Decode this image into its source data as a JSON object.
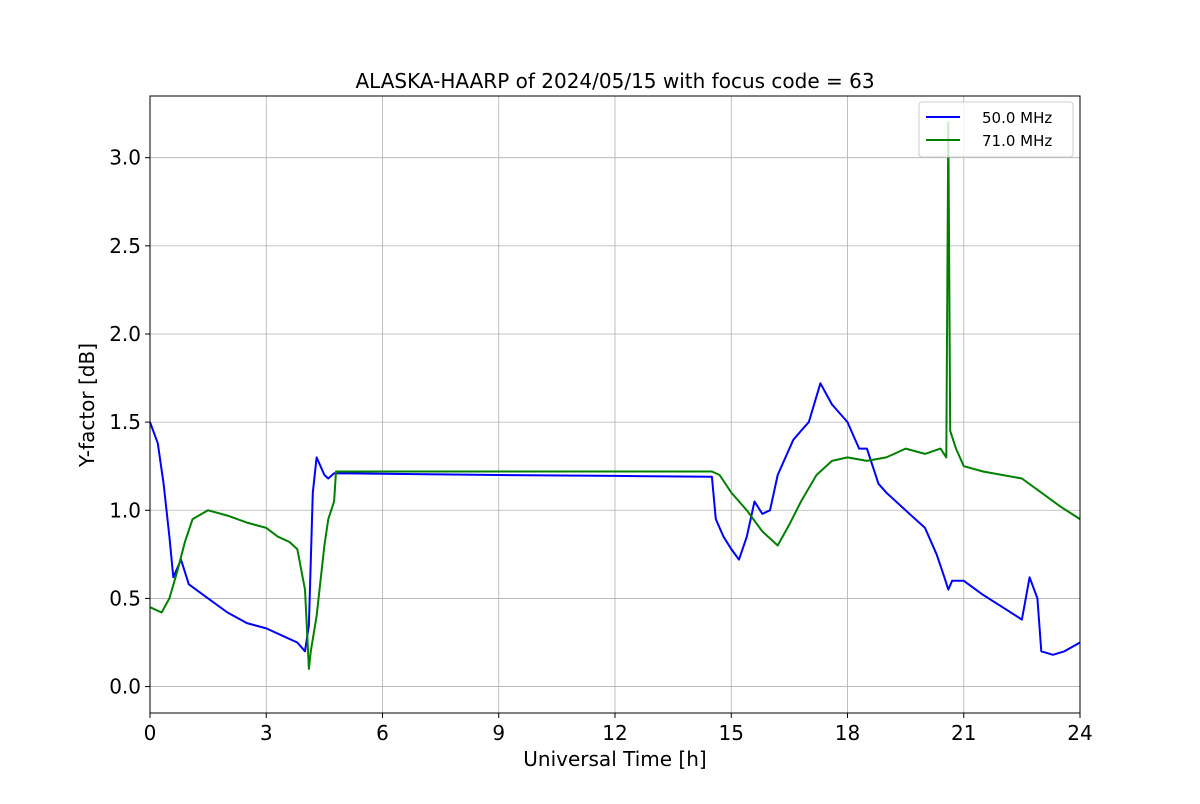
{
  "chart_data": {
    "type": "line",
    "title": "ALASKA-HAARP of 2024/05/15 with focus code = 63",
    "xlabel": "Universal Time [h]",
    "ylabel": "Y-factor [dB]",
    "xlim": [
      0,
      24
    ],
    "ylim": [
      -0.15,
      3.35
    ],
    "xticks": [
      0,
      3,
      6,
      9,
      12,
      15,
      18,
      21,
      24
    ],
    "yticks": [
      0.0,
      0.5,
      1.0,
      1.5,
      2.0,
      2.5,
      3.0
    ],
    "xtick_labels": [
      "0",
      "3",
      "6",
      "9",
      "12",
      "15",
      "18",
      "21",
      "24"
    ],
    "ytick_labels": [
      "0.0",
      "0.5",
      "1.0",
      "1.5",
      "2.0",
      "2.5",
      "3.0"
    ],
    "grid": true,
    "legend_position": "top-right",
    "series": [
      {
        "name": "50.0 MHz",
        "color": "#0000ff",
        "points": [
          [
            0.0,
            1.5
          ],
          [
            0.2,
            1.38
          ],
          [
            0.35,
            1.15
          ],
          [
            0.5,
            0.85
          ],
          [
            0.6,
            0.62
          ],
          [
            0.8,
            0.72
          ],
          [
            1.0,
            0.58
          ],
          [
            1.5,
            0.5
          ],
          [
            2.0,
            0.42
          ],
          [
            2.5,
            0.36
          ],
          [
            3.0,
            0.33
          ],
          [
            3.5,
            0.28
          ],
          [
            3.8,
            0.25
          ],
          [
            4.0,
            0.2
          ],
          [
            4.1,
            0.35
          ],
          [
            4.2,
            1.1
          ],
          [
            4.3,
            1.3
          ],
          [
            4.4,
            1.25
          ],
          [
            4.5,
            1.2
          ],
          [
            4.6,
            1.18
          ],
          [
            4.75,
            1.21
          ],
          [
            9.0,
            1.2
          ],
          [
            12.0,
            1.195
          ],
          [
            14.5,
            1.19
          ],
          [
            14.6,
            0.95
          ],
          [
            14.8,
            0.85
          ],
          [
            15.0,
            0.78
          ],
          [
            15.2,
            0.72
          ],
          [
            15.4,
            0.85
          ],
          [
            15.6,
            1.05
          ],
          [
            15.8,
            0.98
          ],
          [
            16.0,
            1.0
          ],
          [
            16.2,
            1.2
          ],
          [
            16.4,
            1.3
          ],
          [
            16.6,
            1.4
          ],
          [
            16.8,
            1.45
          ],
          [
            17.0,
            1.5
          ],
          [
            17.3,
            1.72
          ],
          [
            17.6,
            1.6
          ],
          [
            18.0,
            1.5
          ],
          [
            18.3,
            1.35
          ],
          [
            18.5,
            1.35
          ],
          [
            18.8,
            1.15
          ],
          [
            19.0,
            1.1
          ],
          [
            19.5,
            1.0
          ],
          [
            20.0,
            0.9
          ],
          [
            20.3,
            0.75
          ],
          [
            20.5,
            0.62
          ],
          [
            20.6,
            0.55
          ],
          [
            20.7,
            0.6
          ],
          [
            21.0,
            0.6
          ],
          [
            21.5,
            0.52
          ],
          [
            22.0,
            0.45
          ],
          [
            22.5,
            0.38
          ],
          [
            22.7,
            0.62
          ],
          [
            22.9,
            0.5
          ],
          [
            23.0,
            0.2
          ],
          [
            23.3,
            0.18
          ],
          [
            23.6,
            0.2
          ],
          [
            24.0,
            0.25
          ]
        ]
      },
      {
        "name": "71.0 MHz",
        "color": "#008000",
        "points": [
          [
            0.0,
            0.45
          ],
          [
            0.3,
            0.42
          ],
          [
            0.5,
            0.5
          ],
          [
            0.7,
            0.65
          ],
          [
            0.9,
            0.82
          ],
          [
            1.1,
            0.95
          ],
          [
            1.5,
            1.0
          ],
          [
            2.0,
            0.97
          ],
          [
            2.5,
            0.93
          ],
          [
            3.0,
            0.9
          ],
          [
            3.3,
            0.85
          ],
          [
            3.6,
            0.82
          ],
          [
            3.8,
            0.78
          ],
          [
            4.0,
            0.55
          ],
          [
            4.1,
            0.1
          ],
          [
            4.15,
            0.2
          ],
          [
            4.3,
            0.4
          ],
          [
            4.5,
            0.8
          ],
          [
            4.6,
            0.95
          ],
          [
            4.75,
            1.05
          ],
          [
            4.8,
            1.22
          ],
          [
            9.0,
            1.22
          ],
          [
            14.5,
            1.22
          ],
          [
            14.7,
            1.2
          ],
          [
            15.0,
            1.1
          ],
          [
            15.4,
            1.0
          ],
          [
            15.8,
            0.88
          ],
          [
            16.2,
            0.8
          ],
          [
            16.5,
            0.92
          ],
          [
            16.8,
            1.05
          ],
          [
            17.2,
            1.2
          ],
          [
            17.6,
            1.28
          ],
          [
            18.0,
            1.3
          ],
          [
            18.5,
            1.28
          ],
          [
            19.0,
            1.3
          ],
          [
            19.5,
            1.35
          ],
          [
            20.0,
            1.32
          ],
          [
            20.4,
            1.35
          ],
          [
            20.55,
            1.3
          ],
          [
            20.6,
            3.2
          ],
          [
            20.65,
            1.45
          ],
          [
            20.8,
            1.35
          ],
          [
            21.0,
            1.25
          ],
          [
            21.5,
            1.22
          ],
          [
            22.0,
            1.2
          ],
          [
            22.5,
            1.18
          ],
          [
            23.0,
            1.1
          ],
          [
            23.5,
            1.02
          ],
          [
            24.0,
            0.95
          ]
        ]
      }
    ]
  }
}
